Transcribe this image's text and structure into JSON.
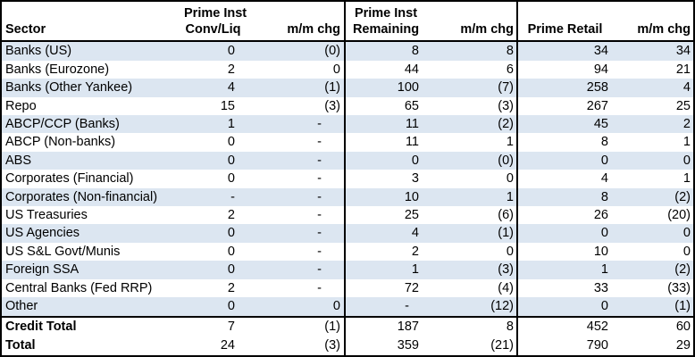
{
  "chart_data": {
    "type": "table",
    "header": {
      "sector": "Sector",
      "group1_line1": "Prime Inst",
      "group1_line2": "Conv/Liq",
      "group1_chg": "m/m chg",
      "group2_line1": "Prime Inst",
      "group2_line2": "Remaining",
      "group2_chg": "m/m chg",
      "group3": "Prime Retail",
      "group3_chg": "m/m chg"
    },
    "rows": [
      {
        "sector": "Banks (US)",
        "conv_liq": "0",
        "conv_liq_chg": "(0)",
        "remaining": "8",
        "remaining_chg": "8",
        "retail": "34",
        "retail_chg": "34"
      },
      {
        "sector": "Banks (Eurozone)",
        "conv_liq": "2",
        "conv_liq_chg": "0",
        "remaining": "44",
        "remaining_chg": "6",
        "retail": "94",
        "retail_chg": "21"
      },
      {
        "sector": "Banks (Other Yankee)",
        "conv_liq": "4",
        "conv_liq_chg": "(1)",
        "remaining": "100",
        "remaining_chg": "(7)",
        "retail": "258",
        "retail_chg": "4"
      },
      {
        "sector": "Repo",
        "conv_liq": "15",
        "conv_liq_chg": "(3)",
        "remaining": "65",
        "remaining_chg": "(3)",
        "retail": "267",
        "retail_chg": "25"
      },
      {
        "sector": "ABCP/CCP (Banks)",
        "conv_liq": "1",
        "conv_liq_chg": "-",
        "remaining": "11",
        "remaining_chg": "(2)",
        "retail": "45",
        "retail_chg": "2"
      },
      {
        "sector": "ABCP (Non-banks)",
        "conv_liq": "0",
        "conv_liq_chg": "-",
        "remaining": "11",
        "remaining_chg": "1",
        "retail": "8",
        "retail_chg": "1"
      },
      {
        "sector": "ABS",
        "conv_liq": "0",
        "conv_liq_chg": "-",
        "remaining": "0",
        "remaining_chg": "(0)",
        "retail": "0",
        "retail_chg": "0"
      },
      {
        "sector": "Corporates (Financial)",
        "conv_liq": "0",
        "conv_liq_chg": "-",
        "remaining": "3",
        "remaining_chg": "0",
        "retail": "4",
        "retail_chg": "1"
      },
      {
        "sector": "Corporates (Non-financial)",
        "conv_liq": "-",
        "conv_liq_chg": "-",
        "remaining": "10",
        "remaining_chg": "1",
        "retail": "8",
        "retail_chg": "(2)"
      },
      {
        "sector": "US Treasuries",
        "conv_liq": "2",
        "conv_liq_chg": "-",
        "remaining": "25",
        "remaining_chg": "(6)",
        "retail": "26",
        "retail_chg": "(20)"
      },
      {
        "sector": "US Agencies",
        "conv_liq": "0",
        "conv_liq_chg": "-",
        "remaining": "4",
        "remaining_chg": "(1)",
        "retail": "0",
        "retail_chg": "0"
      },
      {
        "sector": "US S&L Govt/Munis",
        "conv_liq": "0",
        "conv_liq_chg": "-",
        "remaining": "2",
        "remaining_chg": "0",
        "retail": "10",
        "retail_chg": "0"
      },
      {
        "sector": "Foreign SSA",
        "conv_liq": "0",
        "conv_liq_chg": "-",
        "remaining": "1",
        "remaining_chg": "(3)",
        "retail": "1",
        "retail_chg": "(2)"
      },
      {
        "sector": "Central Banks (Fed RRP)",
        "conv_liq": "2",
        "conv_liq_chg": "-",
        "remaining": "72",
        "remaining_chg": "(4)",
        "retail": "33",
        "retail_chg": "(33)"
      },
      {
        "sector": "Other",
        "conv_liq": "0",
        "conv_liq_chg": "0",
        "remaining": "-",
        "remaining_chg": "(12)",
        "retail": "0",
        "retail_chg": "(1)"
      }
    ],
    "totals": [
      {
        "sector": "Credit Total",
        "conv_liq": "7",
        "conv_liq_chg": "(1)",
        "remaining": "187",
        "remaining_chg": "8",
        "retail": "452",
        "retail_chg": "60"
      },
      {
        "sector": "Total",
        "conv_liq": "24",
        "conv_liq_chg": "(3)",
        "remaining": "359",
        "remaining_chg": "(21)",
        "retail": "790",
        "retail_chg": "29"
      }
    ],
    "styles": {
      "stripe_color": "#dce6f1",
      "border_color": "#000000",
      "background": "#ffffff"
    }
  }
}
